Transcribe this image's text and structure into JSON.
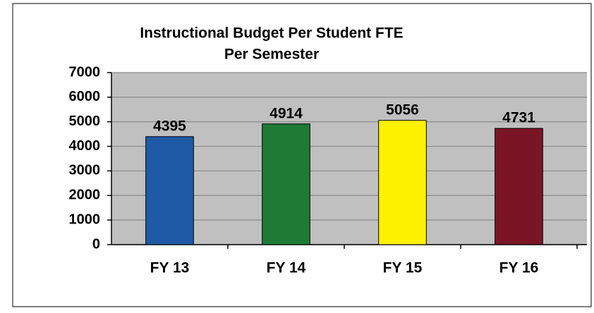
{
  "chart_data": {
    "type": "bar",
    "title": [
      "Instructional Budget Per Student FTE",
      "Per Semester"
    ],
    "categories": [
      "FY 13",
      "FY 14",
      "FY 15",
      "FY 16"
    ],
    "values": [
      4395,
      4914,
      5056,
      4731
    ],
    "colors": [
      "#1f5aa6",
      "#1e7a35",
      "#fff200",
      "#7a1525"
    ],
    "ylim": [
      0,
      7000
    ],
    "yticks": [
      0,
      1000,
      2000,
      3000,
      4000,
      5000,
      6000,
      7000
    ],
    "grid": true
  }
}
